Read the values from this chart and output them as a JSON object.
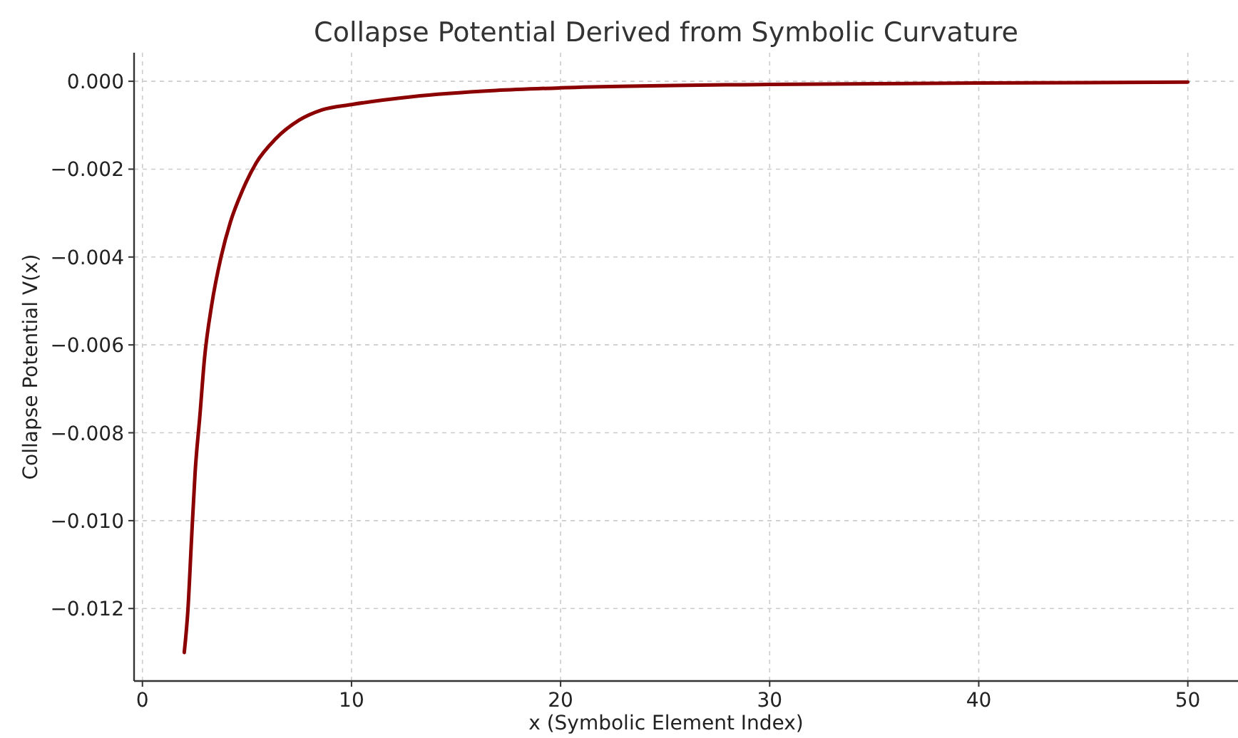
{
  "chart_data": {
    "type": "line",
    "title": "Collapse Potential Derived from Symbolic Curvature",
    "xlabel": "x (Symbolic Element Index)",
    "ylabel": "Collapse Potential V(x)",
    "x": [
      2.0,
      2.18,
      2.34,
      2.52,
      2.75,
      2.97,
      3.31,
      3.76,
      4.21,
      4.77,
      5.45,
      6.35,
      7.48,
      8.6,
      10,
      12.9,
      16.9,
      20,
      30,
      40,
      50
    ],
    "series": [
      {
        "color": "#8b0000",
        "values": [
          -0.013,
          -0.012,
          -0.0105,
          -0.0089,
          -0.0076,
          -0.0063,
          -0.0051,
          -0.004,
          -0.0032,
          -0.0025,
          -0.00185,
          -0.00132,
          -0.00089,
          -0.00065,
          -0.00053,
          -0.00035,
          -0.00021,
          -0.00015,
          -7e-05,
          -4e-05,
          -2e-05
        ]
      }
    ],
    "xlim": [
      -0.4,
      52.4
    ],
    "ylim": [
      -0.01365,
      0.00065
    ],
    "xticks": [
      0,
      10,
      20,
      30,
      40,
      50
    ],
    "yticks": [
      {
        "value": 0,
        "label": "0.000"
      },
      {
        "value": -0.002,
        "label": "−0.002"
      },
      {
        "value": -0.004,
        "label": "−0.004"
      },
      {
        "value": -0.006,
        "label": "−0.006"
      },
      {
        "value": -0.008,
        "label": "−0.008"
      },
      {
        "value": -0.01,
        "label": "−0.010"
      },
      {
        "value": -0.012,
        "label": "−0.012"
      }
    ],
    "grid": true,
    "line_style": "solid",
    "marker": "none"
  }
}
